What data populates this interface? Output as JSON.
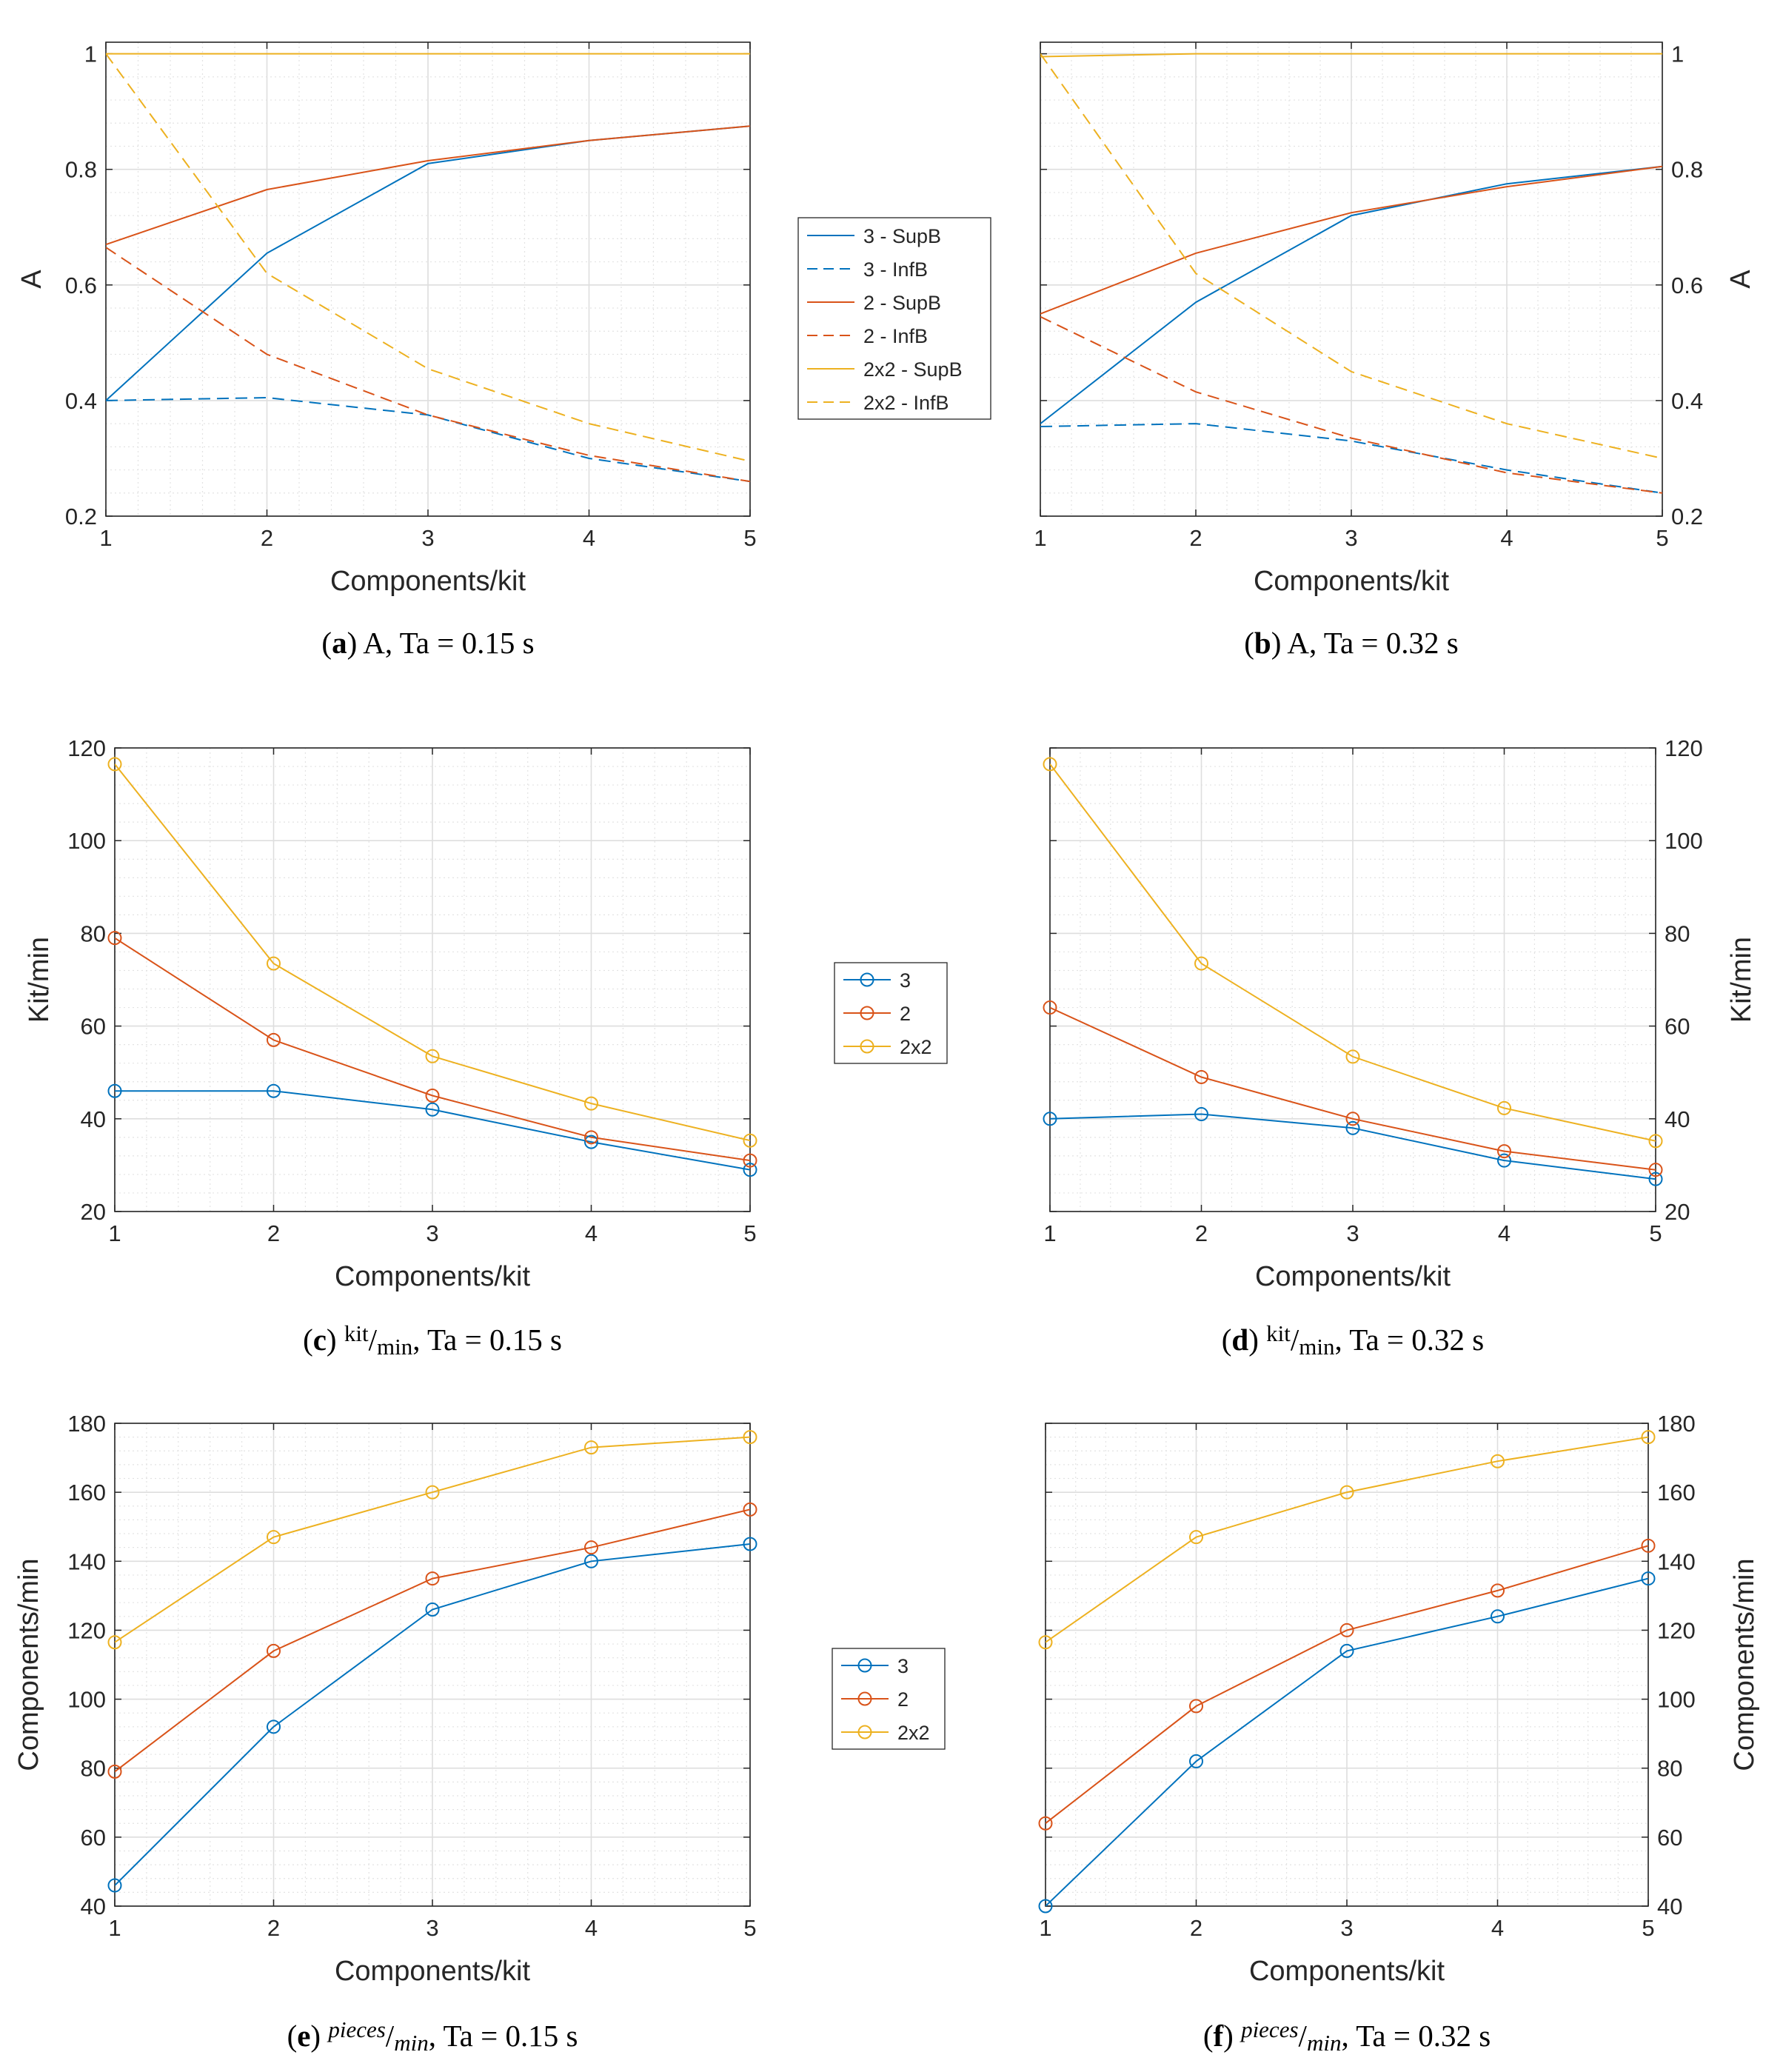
{
  "colors": {
    "blue": "#0072BD",
    "orange": "#D95319",
    "yellow": "#EDB120"
  },
  "chart_data": [
    {
      "id": "a",
      "type": "line",
      "xlabel": "Components/kit",
      "ylabel": "A",
      "xlim": [
        1,
        5
      ],
      "ylim": [
        0.2,
        1.02
      ],
      "yticks": [
        0.2,
        0.4,
        0.6,
        0.8,
        1
      ],
      "ytick_labels": [
        "0.2",
        "0.4",
        "0.6",
        "0.8",
        "1"
      ],
      "xticks": [
        1,
        2,
        3,
        4,
        5
      ],
      "xtick_labels": [
        "1",
        "2",
        "3",
        "4",
        "5"
      ],
      "ylabel_side": "left",
      "markers": false,
      "caption": {
        "label": "a",
        "text": "A, Ta = 0.15 s"
      },
      "legend": {
        "position": "outside-right"
      },
      "x": [
        1,
        2,
        3,
        4,
        5
      ],
      "series": [
        {
          "name": "3 - SupB",
          "color": "blue",
          "dash": false,
          "values": [
            0.4,
            0.655,
            0.81,
            0.85,
            0.875
          ]
        },
        {
          "name": "3 - InfB",
          "color": "blue",
          "dash": true,
          "values": [
            0.4,
            0.405,
            0.375,
            0.3,
            0.26
          ]
        },
        {
          "name": "2 - SupB",
          "color": "orange",
          "dash": false,
          "values": [
            0.67,
            0.765,
            0.815,
            0.85,
            0.875
          ]
        },
        {
          "name": "2 - InfB",
          "color": "orange",
          "dash": true,
          "values": [
            0.665,
            0.48,
            0.375,
            0.305,
            0.26
          ]
        },
        {
          "name": "2x2 - SupB",
          "color": "yellow",
          "dash": false,
          "values": [
            1.0,
            1.0,
            1.0,
            1.0,
            1.0
          ]
        },
        {
          "name": "2x2 - InfB",
          "color": "yellow",
          "dash": true,
          "values": [
            1.0,
            0.62,
            0.455,
            0.36,
            0.295
          ]
        }
      ]
    },
    {
      "id": "b",
      "type": "line",
      "xlabel": "Components/kit",
      "ylabel": "A",
      "xlim": [
        1,
        5
      ],
      "ylim": [
        0.2,
        1.02
      ],
      "yticks": [
        0.2,
        0.4,
        0.6,
        0.8,
        1
      ],
      "ytick_labels": [
        "0.2",
        "0.4",
        "0.6",
        "0.8",
        "1"
      ],
      "xticks": [
        1,
        2,
        3,
        4,
        5
      ],
      "xtick_labels": [
        "1",
        "2",
        "3",
        "4",
        "5"
      ],
      "ylabel_side": "right",
      "markers": false,
      "caption": {
        "label": "b",
        "text": "A, Ta = 0.32 s"
      },
      "x": [
        1,
        2,
        3,
        4,
        5
      ],
      "series": [
        {
          "name": "3 - SupB",
          "color": "blue",
          "dash": false,
          "values": [
            0.36,
            0.57,
            0.72,
            0.775,
            0.805
          ]
        },
        {
          "name": "3 - InfB",
          "color": "blue",
          "dash": true,
          "values": [
            0.355,
            0.36,
            0.33,
            0.28,
            0.24
          ]
        },
        {
          "name": "2 - SupB",
          "color": "orange",
          "dash": false,
          "values": [
            0.55,
            0.655,
            0.725,
            0.77,
            0.805
          ]
        },
        {
          "name": "2 - InfB",
          "color": "orange",
          "dash": true,
          "values": [
            0.545,
            0.415,
            0.335,
            0.275,
            0.24
          ]
        },
        {
          "name": "2x2 - SupB",
          "color": "yellow",
          "dash": false,
          "values": [
            0.995,
            1.0,
            1.0,
            1.0,
            1.0
          ]
        },
        {
          "name": "2x2 - InfB",
          "color": "yellow",
          "dash": true,
          "values": [
            1.0,
            0.62,
            0.45,
            0.36,
            0.3
          ]
        }
      ]
    },
    {
      "id": "c",
      "type": "line",
      "xlabel": "Components/kit",
      "ylabel": "Kit/min",
      "xlim": [
        1,
        5
      ],
      "ylim": [
        20,
        120
      ],
      "yticks": [
        20,
        40,
        60,
        80,
        100,
        120
      ],
      "ytick_labels": [
        "20",
        "40",
        "60",
        "80",
        "100",
        "120"
      ],
      "xticks": [
        1,
        2,
        3,
        4,
        5
      ],
      "xtick_labels": [
        "1",
        "2",
        "3",
        "4",
        "5"
      ],
      "ylabel_side": "left",
      "markers": true,
      "caption": {
        "label": "c",
        "unit_num": "kit",
        "unit_den": "min",
        "text": ", Ta = 0.15 s"
      },
      "legend": {
        "position": "outside-right"
      },
      "x": [
        1,
        2,
        3,
        4,
        5
      ],
      "series": [
        {
          "name": "3",
          "color": "blue",
          "dash": false,
          "values": [
            46,
            46,
            42,
            35,
            29
          ]
        },
        {
          "name": "2",
          "color": "orange",
          "dash": false,
          "values": [
            79,
            57,
            45,
            36,
            31
          ]
        },
        {
          "name": "2x2",
          "color": "yellow",
          "dash": false,
          "values": [
            116.5,
            73.5,
            53.5,
            43.3,
            35.3
          ]
        }
      ]
    },
    {
      "id": "d",
      "type": "line",
      "xlabel": "Components/kit",
      "ylabel": "Kit/min",
      "xlim": [
        1,
        5
      ],
      "ylim": [
        20,
        120
      ],
      "yticks": [
        20,
        40,
        60,
        80,
        100,
        120
      ],
      "ytick_labels": [
        "20",
        "40",
        "60",
        "80",
        "100",
        "120"
      ],
      "xticks": [
        1,
        2,
        3,
        4,
        5
      ],
      "xtick_labels": [
        "1",
        "2",
        "3",
        "4",
        "5"
      ],
      "ylabel_side": "right",
      "markers": true,
      "caption": {
        "label": "d",
        "unit_num": "kit",
        "unit_den": "min",
        "text": ", Ta = 0.32 s"
      },
      "x": [
        1,
        2,
        3,
        4,
        5
      ],
      "series": [
        {
          "name": "3",
          "color": "blue",
          "dash": false,
          "values": [
            40,
            41,
            38,
            31,
            27
          ]
        },
        {
          "name": "2",
          "color": "orange",
          "dash": false,
          "values": [
            64,
            49,
            40,
            33,
            29
          ]
        },
        {
          "name": "2x2",
          "color": "yellow",
          "dash": false,
          "values": [
            116.5,
            73.5,
            53.4,
            42.3,
            35.2
          ]
        }
      ]
    },
    {
      "id": "e",
      "type": "line",
      "xlabel": "Components/kit",
      "ylabel": "Components/min",
      "xlim": [
        1,
        5
      ],
      "ylim": [
        40,
        180
      ],
      "yticks": [
        40,
        60,
        80,
        100,
        120,
        140,
        160,
        180
      ],
      "ytick_labels": [
        "40",
        "60",
        "80",
        "100",
        "120",
        "140",
        "160",
        "180"
      ],
      "xticks": [
        1,
        2,
        3,
        4,
        5
      ],
      "xtick_labels": [
        "1",
        "2",
        "3",
        "4",
        "5"
      ],
      "ylabel_side": "left",
      "markers": true,
      "caption": {
        "label": "e",
        "unit_num": "pieces",
        "unit_den": "min",
        "text": ", Ta = 0.15 s"
      },
      "legend": {
        "position": "outside-right"
      },
      "x": [
        1,
        2,
        3,
        4,
        5
      ],
      "series": [
        {
          "name": "3",
          "color": "blue",
          "dash": false,
          "values": [
            46,
            92,
            126,
            140,
            145
          ]
        },
        {
          "name": "2",
          "color": "orange",
          "dash": false,
          "values": [
            79,
            114,
            135,
            144,
            155
          ]
        },
        {
          "name": "2x2",
          "color": "yellow",
          "dash": false,
          "values": [
            116.5,
            147,
            160,
            173,
            176
          ]
        }
      ]
    },
    {
      "id": "f",
      "type": "line",
      "xlabel": "Components/kit",
      "ylabel": "Components/min",
      "xlim": [
        1,
        5
      ],
      "ylim": [
        40,
        180
      ],
      "yticks": [
        40,
        60,
        80,
        100,
        120,
        140,
        160,
        180
      ],
      "ytick_labels": [
        "40",
        "60",
        "80",
        "100",
        "120",
        "140",
        "160",
        "180"
      ],
      "xticks": [
        1,
        2,
        3,
        4,
        5
      ],
      "xtick_labels": [
        "1",
        "2",
        "3",
        "4",
        "5"
      ],
      "ylabel_side": "right",
      "markers": true,
      "caption": {
        "label": "f",
        "unit_num": "pieces",
        "unit_den": "min",
        "text": ", Ta = 0.32 s"
      },
      "x": [
        1,
        2,
        3,
        4,
        5
      ],
      "series": [
        {
          "name": "3",
          "color": "blue",
          "dash": false,
          "values": [
            40,
            82,
            114,
            124,
            135
          ]
        },
        {
          "name": "2",
          "color": "orange",
          "dash": false,
          "values": [
            64,
            98,
            120,
            131.5,
            144.5
          ]
        },
        {
          "name": "2x2",
          "color": "yellow",
          "dash": false,
          "values": [
            116.5,
            147,
            160,
            169,
            176
          ]
        }
      ]
    }
  ]
}
